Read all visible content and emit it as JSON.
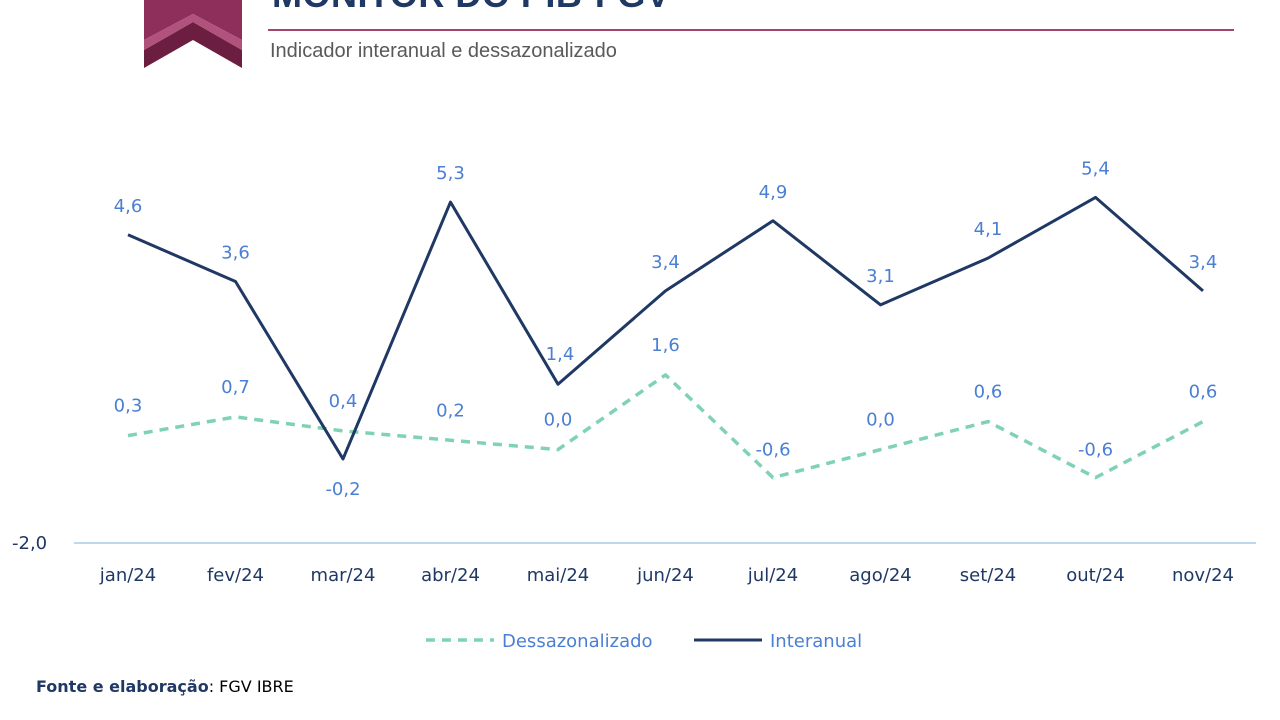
{
  "header": {
    "title": "MONITOR DO PIB-FGV",
    "subtitle": "Indicador interanual  e dessazonalizado"
  },
  "colors": {
    "interanual": "#1f3864",
    "dessazonalizado": "#7fd3b2",
    "labels": "#4a7fd4",
    "logo": "#8e2e5a",
    "axis": "#bcd7f0"
  },
  "chart_data": {
    "type": "line",
    "categories": [
      "jan/24",
      "fev/24",
      "mar/24",
      "abr/24",
      "mai/24",
      "jun/24",
      "jul/24",
      "ago/24",
      "set/24",
      "out/24",
      "nov/24"
    ],
    "series": [
      {
        "name": "Interanual",
        "style": "solid",
        "values": [
          4.6,
          3.6,
          -0.2,
          5.3,
          1.4,
          3.4,
          4.9,
          3.1,
          4.1,
          5.4,
          3.4
        ],
        "labels": [
          "4,6",
          "3,6",
          "-0,2",
          "5,3",
          "1,4",
          "3,4",
          "4,9",
          "3,1",
          "4,1",
          "5,4",
          "3,4"
        ]
      },
      {
        "name": "Dessazonalizado",
        "style": "dashed",
        "values": [
          0.3,
          0.7,
          0.4,
          0.2,
          0.0,
          1.6,
          -0.6,
          0.0,
          0.6,
          -0.6,
          0.6
        ],
        "labels": [
          "0,3",
          "0,7",
          "0,4",
          "0,2",
          "0,0",
          "1,6",
          "-0,6",
          "0,0",
          "0,6",
          "-0,6",
          "0,6"
        ]
      }
    ],
    "ylim": [
      -2.0,
      6.0
    ],
    "y_tick_labels": [
      "-2,0"
    ],
    "legend": [
      "Dessazonalizado",
      "Interanual"
    ],
    "legend_position": "bottom"
  },
  "footer": {
    "source_label": "Fonte e elaboração",
    "source_text": ": FGV IBRE"
  }
}
